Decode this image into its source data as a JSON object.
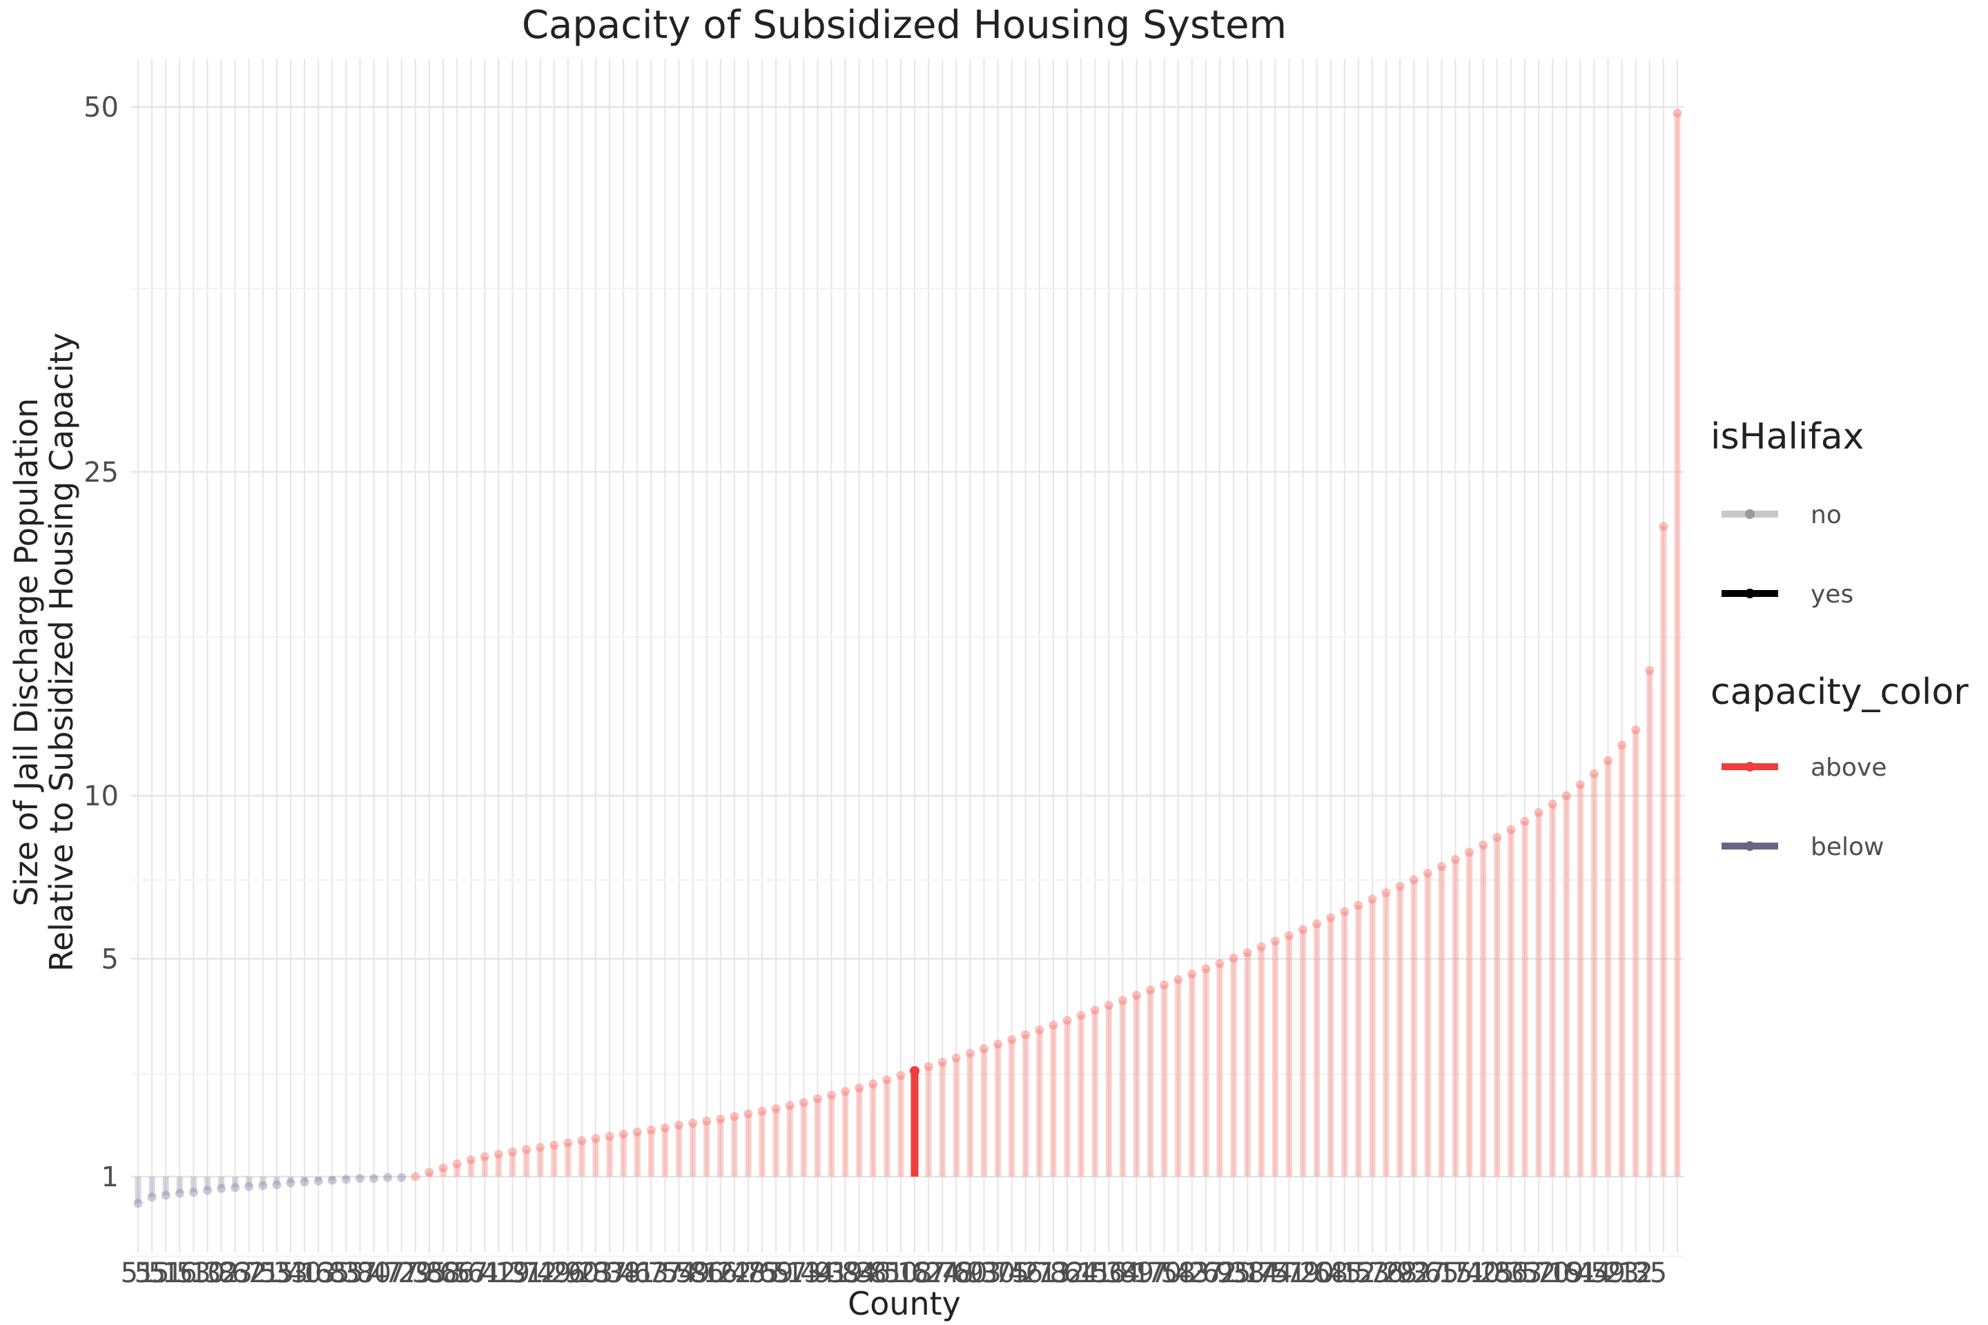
{
  "chart_data": {
    "type": "lollipop",
    "title": "Capacity of Subsidized Housing System",
    "xlabel": "County",
    "ylabel_lines": [
      "Size of Jail Discharge Population",
      "Relative to Subsidized Housing Capacity"
    ],
    "y_axis_scale": "sqrt",
    "y_baseline": 1,
    "ylim": [
      0,
      52
    ],
    "y_ticks": [
      1,
      5,
      10,
      25,
      50
    ],
    "grid": true,
    "legend_position": "right",
    "colors": {
      "above": "#f8766d",
      "above_highlight": "#f03c3c",
      "below": "#8f8aa8",
      "below_highlight": "#6a6584",
      "grid_major": "#e5e5e5",
      "grid_minor": "#f2f2f2"
    },
    "highlight_index": 56,
    "values": [
      0.72,
      0.78,
      0.8,
      0.82,
      0.83,
      0.85,
      0.87,
      0.88,
      0.89,
      0.9,
      0.91,
      0.93,
      0.94,
      0.95,
      0.96,
      0.97,
      0.98,
      0.98,
      0.99,
      0.99,
      1.0,
      1.05,
      1.1,
      1.15,
      1.2,
      1.24,
      1.27,
      1.3,
      1.33,
      1.36,
      1.39,
      1.42,
      1.45,
      1.48,
      1.51,
      1.54,
      1.57,
      1.6,
      1.63,
      1.67,
      1.7,
      1.73,
      1.76,
      1.8,
      1.84,
      1.88,
      1.92,
      1.97,
      2.02,
      2.08,
      2.14,
      2.2,
      2.26,
      2.33,
      2.4,
      2.48,
      2.56,
      2.64,
      2.72,
      2.8,
      2.89,
      2.98,
      3.07,
      3.16,
      3.26,
      3.36,
      3.46,
      3.56,
      3.67,
      3.78,
      3.89,
      4.0,
      4.12,
      4.24,
      4.36,
      4.49,
      4.62,
      4.75,
      4.88,
      5.02,
      5.16,
      5.31,
      5.46,
      5.61,
      5.77,
      5.93,
      6.1,
      6.27,
      6.45,
      6.63,
      6.82,
      7.01,
      7.21,
      7.41,
      7.62,
      7.84,
      8.07,
      8.31,
      8.56,
      8.82,
      9.1,
      9.4,
      9.7,
      10.0,
      10.4,
      10.8,
      11.3,
      11.9,
      12.5,
      15.0,
      22.0,
      49.5
    ],
    "x_tick_labels": [
      "51",
      "55",
      "51",
      "16",
      "53",
      "10",
      "32",
      "83",
      "62",
      "71",
      "55",
      "33",
      "40",
      "13",
      "65",
      "85",
      "37",
      "80",
      "47",
      "77",
      "29",
      "35",
      "88",
      "66",
      "57",
      "61",
      "42",
      "19",
      "31",
      "72",
      "49",
      "26",
      "90",
      "23",
      "87",
      "38",
      "41",
      "63",
      "77",
      "54",
      "59",
      "86",
      "16",
      "22",
      "48",
      "75",
      "69",
      "57",
      "13",
      "44",
      "91",
      "39",
      "84",
      "36",
      "81",
      "50",
      "18",
      "67",
      "24",
      "78",
      "60",
      "93",
      "30",
      "75",
      "46",
      "21",
      "73",
      "82",
      "64",
      "11",
      "56",
      "34",
      "89",
      "17",
      "70",
      "58",
      "43",
      "27",
      "62",
      "95",
      "38",
      "14",
      "74",
      "51",
      "79",
      "20",
      "68",
      "45",
      "12",
      "53",
      "76",
      "28",
      "92",
      "37",
      "65",
      "15",
      "71",
      "40",
      "25",
      "86",
      "33",
      "52",
      "70",
      "19",
      "61",
      "44",
      "59",
      "23",
      "12",
      "35"
    ],
    "legends": [
      {
        "title": "isHalifax",
        "entries": [
          {
            "label": "no",
            "color": "#c8c8c8"
          },
          {
            "label": "yes",
            "color": "#000000"
          }
        ]
      },
      {
        "title": "capacity_color",
        "entries": [
          {
            "label": "above",
            "color": "#f03c3c"
          },
          {
            "label": "below",
            "color": "#6a6584"
          }
        ]
      }
    ]
  }
}
